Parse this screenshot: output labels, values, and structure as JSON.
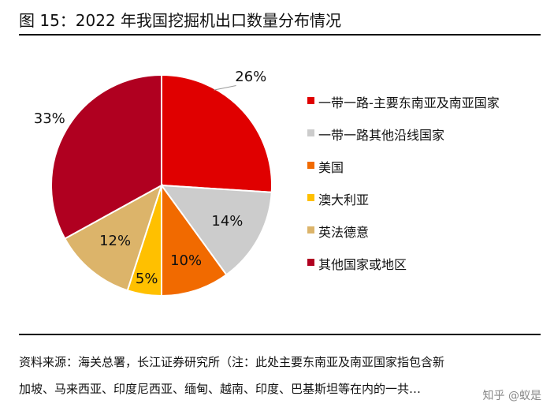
{
  "title": "图 15：2022 年我国挖掘机出口数量分布情况",
  "chart_data": {
    "type": "pie",
    "start_angle_deg": 0,
    "direction": "clockwise",
    "slices": [
      {
        "label": "一带一路-主要东南亚及南亚国家",
        "value": 26,
        "value_label": "26%",
        "color": "#E00000"
      },
      {
        "label": "一带一路其他沿线国家",
        "value": 14,
        "value_label": "14%",
        "color": "#CCCCCC"
      },
      {
        "label": "美国",
        "value": 10,
        "value_label": "10%",
        "color": "#F16A00"
      },
      {
        "label": "澳大利亚",
        "value": 5,
        "value_label": "5%",
        "color": "#FFC000"
      },
      {
        "label": "英法德意",
        "value": 12,
        "value_label": "12%",
        "color": "#DCB46A"
      },
      {
        "label": "其他国家或地区",
        "value": 33,
        "value_label": "33%",
        "color": "#B00020"
      }
    ],
    "legend_position": "right"
  },
  "source": {
    "line1": "资料来源：海关总署，长江证券研究所（注：此处主要东南亚及南亚国家指包含新",
    "line2": "加坡、马来西亚、印度尼西亚、缅甸、越南、印度、巴基斯坦等在内的一共…"
  },
  "watermark": "知乎 @蚁是"
}
